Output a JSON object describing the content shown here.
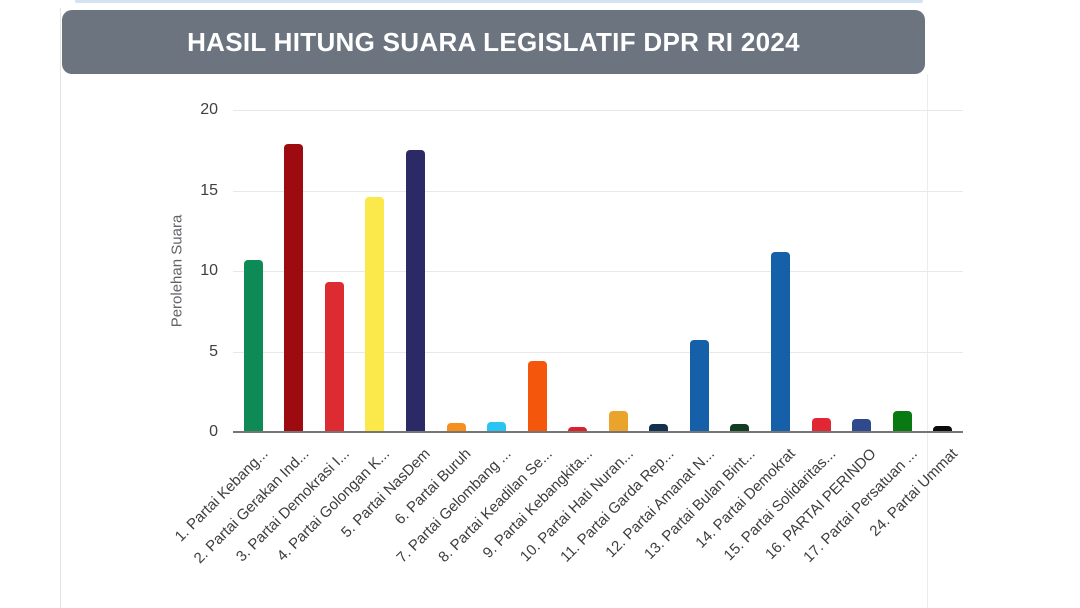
{
  "page": {
    "title": "HASIL HITUNG SUARA LEGISLATIF DPR RI 2024"
  },
  "colors": {
    "header_bg": "#6c7480",
    "header_text": "#ffffff",
    "gridline": "#e8e8e8",
    "baseline": "#757575",
    "tick_text": "#404040",
    "label_text": "#3d3d3d"
  },
  "chart_data": {
    "type": "bar",
    "title": "HASIL HITUNG SUARA LEGISLATIF DPR RI 2024",
    "xlabel": "",
    "ylabel": "Perolehan Suara",
    "ylim": [
      0,
      20
    ],
    "yticks": [
      0,
      5,
      10,
      15,
      20
    ],
    "grid": true,
    "legend": "none",
    "categories": [
      "1. Partai Kebang...",
      "2. Partai Gerakan Ind...",
      "3. Partai Demokrasi I...",
      "4. Partai Golongan K...",
      "5. Partai NasDem",
      "6. Partai Buruh",
      "7. Partai Gelombang ...",
      "8. Partai Keadilan Se...",
      "9. Partai Kebangkita...",
      "10. Partai Hati Nuran...",
      "11. Partai Garda Rep...",
      "12. Partai Amanat N...",
      "13. Partai Bulan Bint...",
      "14. Partai Demokrat",
      "15. Partai Solidaritas...",
      "16. PARTAI PERINDO",
      "17. Partai Persatuan ...",
      "24. Partai Ummat"
    ],
    "values": [
      10.7,
      17.9,
      9.3,
      14.6,
      17.5,
      0.55,
      0.6,
      4.4,
      0.3,
      1.3,
      0.5,
      5.7,
      0.5,
      11.2,
      0.9,
      0.8,
      1.3,
      0.35
    ],
    "bar_colors": [
      "#0D8A56",
      "#9D0B10",
      "#DC2B31",
      "#FBE84A",
      "#2C2A66",
      "#F78F1E",
      "#29C4F1",
      "#F4560B",
      "#DD2027",
      "#EAA42C",
      "#14304F",
      "#1560A8",
      "#123D22",
      "#1560A8",
      "#E02733",
      "#2E4A8C",
      "#097A12",
      "#0A0A0A"
    ]
  }
}
